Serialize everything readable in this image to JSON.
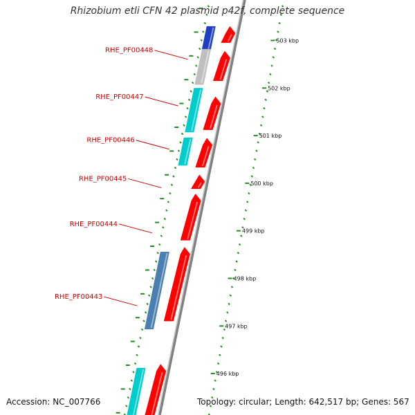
{
  "title": "Rhizobium etli CFN 42 plasmid p42f, complete sequence",
  "footer": {
    "accession": "Accession: NC_007766",
    "summary": "Topology: circular; Length: 642,517 bp; Genes: 567"
  },
  "colors": {
    "forward_cds": "#ff0000",
    "reverse_cds_cyan": "#00cccc",
    "reverse_cds_blue": "#4a7fb0",
    "reverse_cds_gray": "#bfbfbf",
    "backbone": "#808080",
    "tick": "#228b22",
    "gene_label": "#cc0000"
  },
  "gene_labels": [
    {
      "text": "RHE_PF00448",
      "pos_kbp": 502.75
    },
    {
      "text": "RHE_PF00447",
      "pos_kbp": 501.77
    },
    {
      "text": "RHE_PF00446",
      "pos_kbp": 500.86
    },
    {
      "text": "RHE_PF00445",
      "pos_kbp": 500.05
    },
    {
      "text": "RHE_PF00444",
      "pos_kbp": 499.1
    },
    {
      "text": "RHE_PF00443",
      "pos_kbp": 497.57
    }
  ],
  "scale_labels": [
    {
      "text": "503 kbp",
      "kbp": 503
    },
    {
      "text": "502 kbp",
      "kbp": 502
    },
    {
      "text": "501 kbp",
      "kbp": 501
    },
    {
      "text": "500 kbp",
      "kbp": 500
    },
    {
      "text": "499 kbp",
      "kbp": 499
    },
    {
      "text": "498 kbp",
      "kbp": 498
    },
    {
      "text": "497 kbp",
      "kbp": 497
    },
    {
      "text": "496 kbp",
      "kbp": 496
    }
  ],
  "forward_features": [
    {
      "start": 502.95,
      "end": 503.3
    },
    {
      "start": 502.15,
      "end": 502.78
    },
    {
      "start": 501.12,
      "end": 501.82
    },
    {
      "start": 500.33,
      "end": 500.95
    },
    {
      "start": 499.88,
      "end": 500.18
    },
    {
      "start": 498.8,
      "end": 499.78
    },
    {
      "start": 497.1,
      "end": 498.66
    },
    {
      "start": 495.0,
      "end": 496.2
    }
  ],
  "reverse_features": [
    {
      "start": 502.78,
      "end": 503.3,
      "color": "#1f3fbf"
    },
    {
      "start": 502.07,
      "end": 502.82,
      "color": "#bfbfbf"
    },
    {
      "start": 501.07,
      "end": 502.0,
      "color": "#00cccc"
    },
    {
      "start": 500.37,
      "end": 500.96,
      "color": "#00cccc"
    },
    {
      "start": 496.93,
      "end": 498.56,
      "color": "#4a7fb0"
    },
    {
      "start": 495.0,
      "end": 496.12,
      "color": "#00cccc"
    }
  ]
}
